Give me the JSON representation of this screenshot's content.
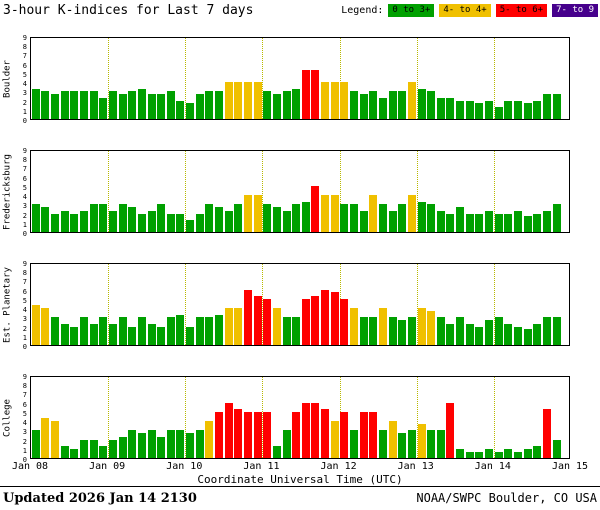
{
  "title": "3-hour K-indices for Last 7 days",
  "legend": {
    "label": "Legend:",
    "items": [
      {
        "label": "0 to 3+",
        "color": "#00A000",
        "text_color": "#000000"
      },
      {
        "label": "4- to 4+",
        "color": "#F0C000",
        "text_color": "#000000"
      },
      {
        "label": "5- to 6+",
        "color": "#FF0000",
        "text_color": "#000000"
      },
      {
        "label": "7- to 9",
        "color": "#46008C",
        "text_color": "#FFFFFF"
      }
    ]
  },
  "yaxis": {
    "min": 0,
    "max": 9,
    "ticks": [
      0,
      1,
      2,
      3,
      4,
      5,
      6,
      7,
      8,
      9
    ]
  },
  "xaxis": {
    "title": "Coordinate Universal Time (UTC)",
    "labels": [
      "Jan 08",
      "Jan 09",
      "Jan 10",
      "Jan 11",
      "Jan 12",
      "Jan 13",
      "Jan 14",
      "Jan 15"
    ]
  },
  "footer": {
    "updated": "Updated 2026 Jan 14 2130",
    "credit": "NOAA/SWPC Boulder, CO USA"
  },
  "chart_data": {
    "type": "bar",
    "days": 7,
    "slots_per_day": 8,
    "x_start": "Jan 08",
    "x_end": "Jan 15",
    "ylim": [
      0,
      9
    ],
    "thresholds": [
      {
        "max": 3.5,
        "color": "green"
      },
      {
        "max": 4.5,
        "color": "yellow"
      },
      {
        "max": 6.5,
        "color": "red"
      },
      {
        "max": 9,
        "color": "purple"
      }
    ],
    "colors": {
      "green": "#00A000",
      "yellow": "#F0C000",
      "red": "#FF0000",
      "purple": "#46008C"
    },
    "panels": [
      {
        "station": "Boulder",
        "values": [
          3.3,
          3,
          2.7,
          3,
          3,
          3,
          3,
          2.3,
          3,
          2.7,
          3,
          3.3,
          2.7,
          2.7,
          3,
          2,
          1.7,
          2.7,
          3,
          3,
          4,
          4,
          4,
          4,
          3,
          2.7,
          3,
          3.3,
          5.3,
          5.3,
          4,
          4,
          4,
          3,
          2.7,
          3,
          2.3,
          3,
          3,
          4,
          3.3,
          3,
          2.3,
          2.3,
          2,
          2,
          1.7,
          2,
          1.3,
          2,
          2,
          1.7,
          2,
          2.7,
          2.7
        ]
      },
      {
        "station": "Fredericksburg",
        "values": [
          3,
          2.7,
          2,
          2.3,
          2,
          2.3,
          3,
          3,
          2.3,
          3,
          2.7,
          2,
          2.3,
          3,
          2,
          2,
          1.3,
          2,
          3,
          2.7,
          2.3,
          3,
          4,
          4,
          3,
          2.7,
          2.3,
          3,
          3.3,
          5,
          4,
          4,
          3,
          3,
          2.3,
          4,
          3,
          2.3,
          3,
          4,
          3.3,
          3,
          2.3,
          2,
          2.7,
          2,
          2,
          2.3,
          2,
          2,
          2.3,
          1.7,
          2,
          2.3,
          3
        ]
      },
      {
        "station": "Est. Planetary",
        "values": [
          4.3,
          4,
          3,
          2.3,
          2,
          3,
          2.3,
          3,
          2.3,
          3,
          2,
          3,
          2.3,
          2,
          3,
          3.3,
          2,
          3,
          3,
          3.3,
          4,
          4,
          6,
          5.3,
          5,
          4,
          3,
          3,
          5,
          5.3,
          6,
          5.7,
          5,
          4,
          3,
          3,
          4,
          3,
          2.7,
          3,
          4,
          3.7,
          3,
          2.3,
          3,
          2.3,
          2,
          2.7,
          3,
          2.3,
          2,
          1.7,
          2.3,
          3,
          3
        ]
      },
      {
        "station": "College",
        "values": [
          3,
          4.3,
          4,
          1.3,
          1,
          2,
          2,
          1.3,
          2,
          2.3,
          3,
          2.7,
          3,
          2.3,
          3,
          3,
          2.7,
          3,
          4,
          5,
          6,
          5.3,
          5,
          5,
          5,
          1.3,
          3,
          5,
          6,
          6,
          5.3,
          4,
          5,
          3,
          5,
          5,
          3,
          4,
          2.7,
          3,
          3.7,
          3,
          3,
          6,
          1,
          0.7,
          0.7,
          1,
          0.7,
          1,
          0.7,
          1,
          1.3,
          5.3,
          2
        ]
      }
    ]
  }
}
